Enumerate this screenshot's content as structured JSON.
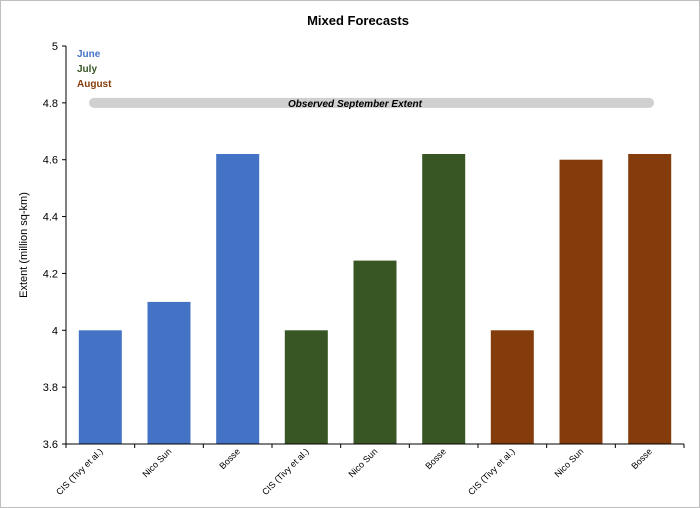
{
  "chart_data": {
    "type": "bar",
    "title": "Mixed Forecasts",
    "ylabel": "Extent (million sq-km)",
    "xlabel": "",
    "ylim": [
      3.6,
      5
    ],
    "yticks": [
      "3.6",
      "3.8",
      "4",
      "4.2",
      "4.4",
      "4.6",
      "4.8",
      "5"
    ],
    "categories": [
      "CIS (Tivy et al.)",
      "Nico Sun",
      "Bosse",
      "CIS (Tivy et al.)",
      "Nico Sun",
      "Bosse",
      "CIS (Tivy et al.)",
      "Nico Sun",
      "Bosse"
    ],
    "values": [
      4.0,
      4.1,
      4.62,
      4.0,
      4.245,
      4.62,
      4.0,
      4.6,
      4.62
    ],
    "bar_groups": [
      "June",
      "June",
      "June",
      "July",
      "July",
      "July",
      "August",
      "August",
      "August"
    ],
    "legend": [
      {
        "name": "June",
        "color": "#4472c4"
      },
      {
        "name": "July",
        "color": "#375623"
      },
      {
        "name": "August",
        "color": "#843c0c"
      }
    ],
    "legend_placement": "top-left",
    "observed_band": {
      "label": "Observed September Extent",
      "value": 4.8,
      "color": "#d0d0d0"
    },
    "grid": false
  }
}
